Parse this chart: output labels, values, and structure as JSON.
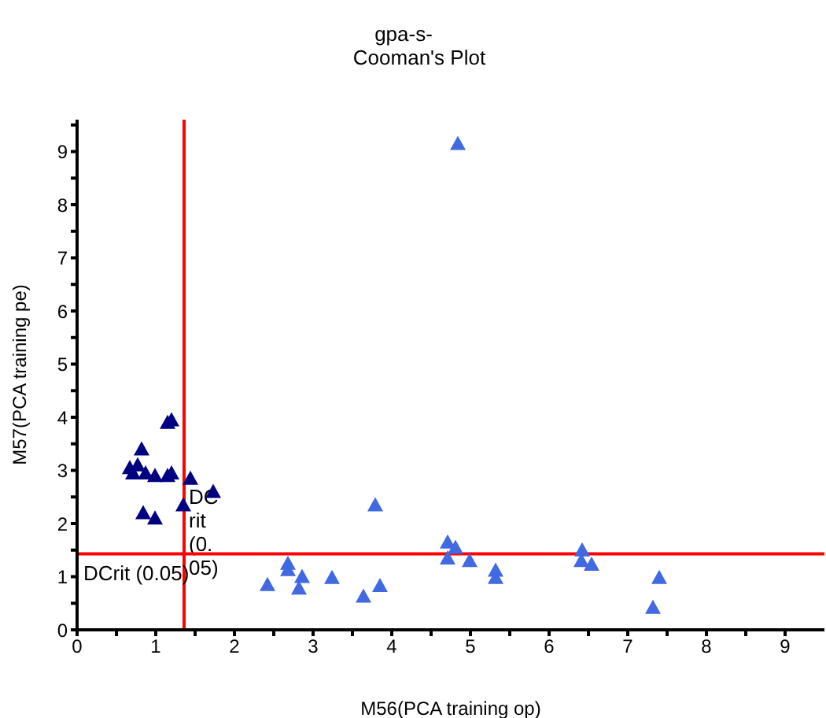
{
  "chart_data": {
    "type": "scatter",
    "title": "gpa-s-",
    "subtitle": "Cooman's Plot",
    "xlabel": "M56(PCA training op)",
    "ylabel": "M57(PCA training pe)",
    "xlim": [
      0,
      9.5
    ],
    "ylim": [
      0,
      9.6
    ],
    "xticks": [
      0,
      {
        "value": 0.5,
        "label": null
      },
      1,
      {
        "value": 1.5,
        "label": null
      },
      2,
      {
        "value": 2.5,
        "label": null
      },
      3,
      {
        "value": 3.5,
        "label": null
      },
      4,
      {
        "value": 4.5,
        "label": null
      },
      5,
      {
        "value": 5.5,
        "label": null
      },
      6,
      {
        "value": 6.5,
        "label": null
      },
      7,
      {
        "value": 7.5,
        "label": null
      },
      8,
      {
        "value": 8.5,
        "label": null
      },
      9
    ],
    "yticks": [
      0,
      {
        "value": 0.5,
        "label": null
      },
      1,
      {
        "value": 1.5,
        "label": null
      },
      2,
      {
        "value": 2.5,
        "label": null
      },
      3,
      {
        "value": 3.5,
        "label": null
      },
      4,
      {
        "value": 4.5,
        "label": null
      },
      5,
      {
        "value": 5.5,
        "label": null
      },
      6,
      {
        "value": 6.5,
        "label": null
      },
      7,
      {
        "value": 7.5,
        "label": null
      },
      8,
      {
        "value": 8.5,
        "label": null
      },
      9,
      {
        "value": 9.5,
        "label": null
      }
    ],
    "grid": false,
    "legend": false,
    "marker": "triangle",
    "series": [
      {
        "color": "#000080",
        "x": [
          0.67,
          0.77,
          0.71,
          0.82,
          0.87,
          0.95,
          0.99,
          0.84,
          0.99,
          1.15,
          1.2,
          1.15,
          1.2,
          1.35,
          1.44,
          1.73
        ],
        "values": [
          3.05,
          3.1,
          2.95,
          3.4,
          2.95,
          null,
          2.9,
          2.2,
          2.1,
          3.9,
          3.95,
          2.9,
          2.95,
          2.35,
          2.85,
          2.6
        ]
      },
      {
        "color": "#4169e1",
        "x": [
          2.42,
          2.68,
          2.68,
          2.86,
          2.82,
          3.24,
          3.64,
          3.79,
          3.85,
          4.71,
          4.81,
          4.71,
          4.99,
          5.32,
          5.32,
          6.42,
          6.41,
          6.54,
          7.4,
          7.32,
          4.84
        ],
        "values": [
          0.85,
          1.25,
          1.13,
          1.0,
          0.78,
          0.98,
          0.63,
          2.35,
          0.83,
          1.65,
          1.55,
          1.35,
          1.3,
          1.12,
          0.98,
          1.5,
          1.3,
          1.23,
          0.98,
          0.42,
          9.15
        ]
      }
    ],
    "ref_lines": [
      {
        "axis": "x",
        "value": 1.36,
        "label": "DCrit (0.05)",
        "color": "#ff0000"
      },
      {
        "axis": "y",
        "value": 1.43,
        "label": "DCrit (0.05)",
        "color": "#ff0000"
      }
    ]
  }
}
